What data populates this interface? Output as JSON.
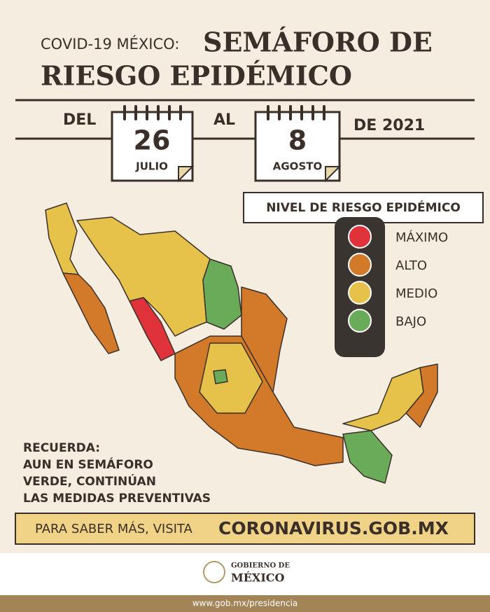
{
  "header": {
    "prefix": "COVID-19 MÉXICO:",
    "title_line1": "SEMÁFORO DE",
    "title_line2": "RIESGO EPIDÉMICO"
  },
  "dates": {
    "from_label": "DEL",
    "start_day": "26",
    "start_month": "JULIO",
    "to_label": "AL",
    "end_day": "8",
    "end_month": "AGOSTO",
    "year_label": "DE 2021"
  },
  "legend": {
    "title": "NIVEL DE RIESGO EPIDÉMICO",
    "levels": [
      {
        "label": "MÁXIMO",
        "color": "#e0323a"
      },
      {
        "label": "ALTO",
        "color": "#d27a2a"
      },
      {
        "label": "MEDIO",
        "color": "#e6c24a"
      },
      {
        "label": "BAJO",
        "color": "#6aab5a"
      }
    ]
  },
  "reminder": {
    "title": "RECUERDA:",
    "lines": [
      "AUN EN SEMÁFORO",
      "VERDE, CONTINÚAN",
      "LAS MEDIDAS PREVENTIVAS"
    ]
  },
  "banner": {
    "text": "PARA SABER MÁS, VISITA",
    "link": "CORONAVIRUS.GOB.MX"
  },
  "logo": {
    "line1": "GOBIERNO DE",
    "line2": "MÉXICO"
  },
  "footer": {
    "url": "www.gob.mx/presidencia"
  }
}
